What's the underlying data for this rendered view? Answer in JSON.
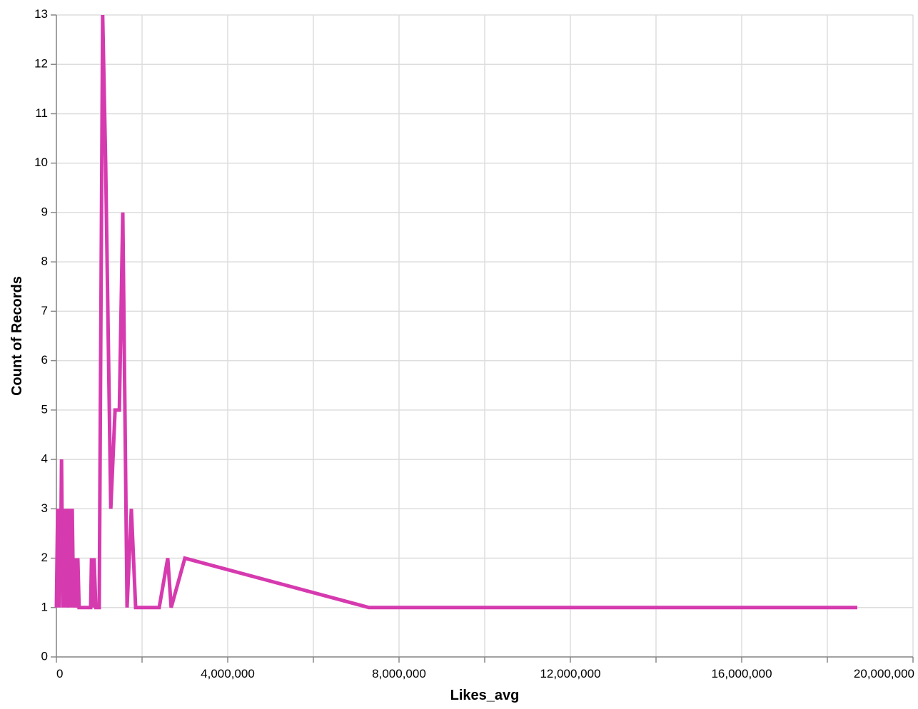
{
  "chart_data": {
    "type": "line",
    "xlabel": "Likes_avg",
    "ylabel": "Count of Records",
    "xlim": [
      0,
      20000000
    ],
    "ylim": [
      0,
      13
    ],
    "x_ticks": [
      0,
      2000000,
      4000000,
      6000000,
      8000000,
      10000000,
      12000000,
      14000000,
      16000000,
      18000000,
      20000000
    ],
    "x_tick_labels": [
      "0",
      "",
      "4,000,000",
      "",
      "8,000,000",
      "",
      "12,000,000",
      "",
      "16,000,000",
      "",
      "20,000,000"
    ],
    "y_ticks": [
      0,
      1,
      2,
      3,
      4,
      5,
      6,
      7,
      8,
      9,
      10,
      11,
      12,
      13
    ],
    "y_tick_labels": [
      "0",
      "1",
      "2",
      "3",
      "4",
      "5",
      "6",
      "7",
      "8",
      "9",
      "10",
      "11",
      "12",
      "13"
    ],
    "grid": true,
    "series": [
      {
        "color": "#d63aaf",
        "x": [
          0,
          30000,
          60000,
          80000,
          100000,
          120000,
          150000,
          180000,
          200000,
          230000,
          260000,
          280000,
          310000,
          340000,
          370000,
          400000,
          440000,
          480000,
          500000,
          530000,
          560000,
          600000,
          700000,
          800000,
          820000,
          850000,
          880000,
          920000,
          950000,
          1000000,
          1080000,
          1150000,
          1270000,
          1370000,
          1470000,
          1550000,
          1650000,
          1750000,
          1850000,
          2000000,
          2400000,
          2600000,
          2680000,
          3000000,
          7300000,
          18700000
        ],
        "y": [
          1,
          3,
          1,
          3,
          2,
          4,
          1,
          3,
          1,
          3,
          1,
          2,
          3,
          1,
          3,
          1,
          2,
          1,
          2,
          1,
          1,
          1,
          1,
          1,
          2,
          1,
          2,
          1,
          1,
          1,
          13,
          10,
          3,
          5,
          5,
          9,
          1,
          3,
          1,
          1,
          1,
          2,
          1,
          2,
          1,
          1
        ]
      }
    ]
  }
}
